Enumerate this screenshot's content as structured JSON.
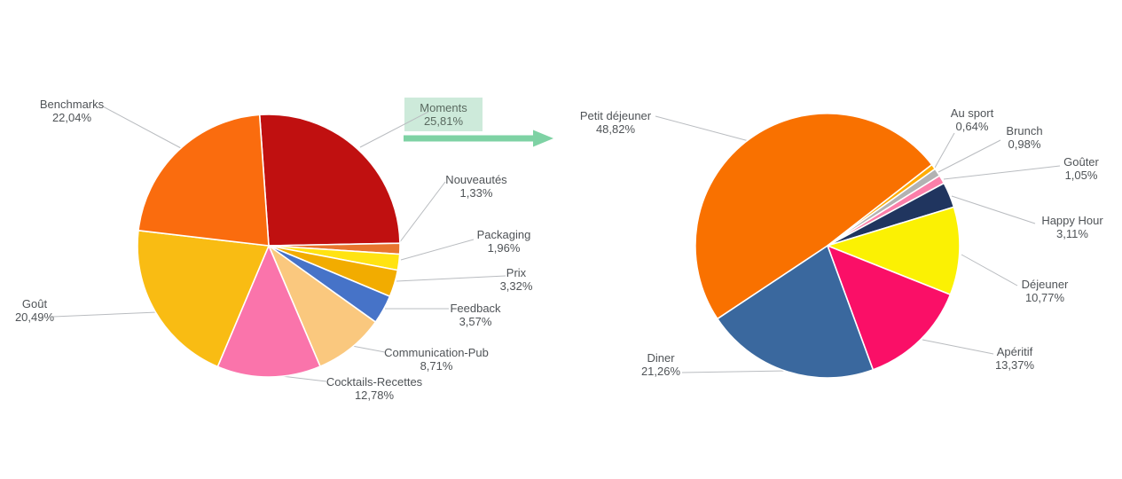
{
  "page": {
    "background_color": "#ffffff"
  },
  "drilldown": {
    "selected_label": "Moments",
    "selected_value": "25,81%",
    "highlight_color": "#cdeada",
    "arrow_color": "#7ed2a4"
  },
  "chart_data": [
    {
      "type": "pie",
      "name": "themes",
      "legend_position": "outside-callout-labels",
      "start_angle_deg": -4,
      "slices": [
        {
          "label": "Moments",
          "value": 25.81,
          "display": "25,81%",
          "color": "#c01010",
          "selected": true
        },
        {
          "label": "Nouveautés",
          "value": 1.33,
          "display": "1,33%",
          "color": "#e8752e"
        },
        {
          "label": "Packaging",
          "value": 1.96,
          "display": "1,96%",
          "color": "#ffe312"
        },
        {
          "label": "Prix",
          "value": 3.32,
          "display": "3,32%",
          "color": "#f2ac00"
        },
        {
          "label": "Feedback",
          "value": 3.57,
          "display": "3,57%",
          "color": "#4673c8"
        },
        {
          "label": "Communication-Pub",
          "value": 8.71,
          "display": "8,71%",
          "color": "#fac87e"
        },
        {
          "label": "Cocktails-Recettes",
          "value": 12.78,
          "display": "12,78%",
          "color": "#fa74ab"
        },
        {
          "label": "Goût",
          "value": 20.49,
          "display": "20,49%",
          "color": "#f9bc13"
        },
        {
          "label": "Benchmarks",
          "value": 22.04,
          "display": "22,04%",
          "color": "#fa6c0e"
        }
      ]
    },
    {
      "type": "pie",
      "name": "moments-breakdown",
      "legend_position": "outside-callout-labels",
      "start_angle_deg": 236.4,
      "slices": [
        {
          "label": "Petit déjeuner",
          "value": 48.82,
          "display": "48,82%",
          "color": "#f97100"
        },
        {
          "label": "Au sport",
          "value": 0.64,
          "display": "0,64%",
          "color": "#ffad05"
        },
        {
          "label": "Brunch",
          "value": 0.98,
          "display": "0,98%",
          "color": "#b2b2b2"
        },
        {
          "label": "Goûter",
          "value": 1.05,
          "display": "1,05%",
          "color": "#fc7fa9"
        },
        {
          "label": "Happy Hour",
          "value": 3.11,
          "display": "3,11%",
          "color": "#20355f"
        },
        {
          "label": "Déjeuner",
          "value": 10.77,
          "display": "10,77%",
          "color": "#fbf103"
        },
        {
          "label": "Apéritif",
          "value": 13.37,
          "display": "13,37%",
          "color": "#fa0f67"
        },
        {
          "label": "Diner",
          "value": 21.26,
          "display": "21,26%",
          "color": "#3a689e"
        }
      ]
    }
  ]
}
